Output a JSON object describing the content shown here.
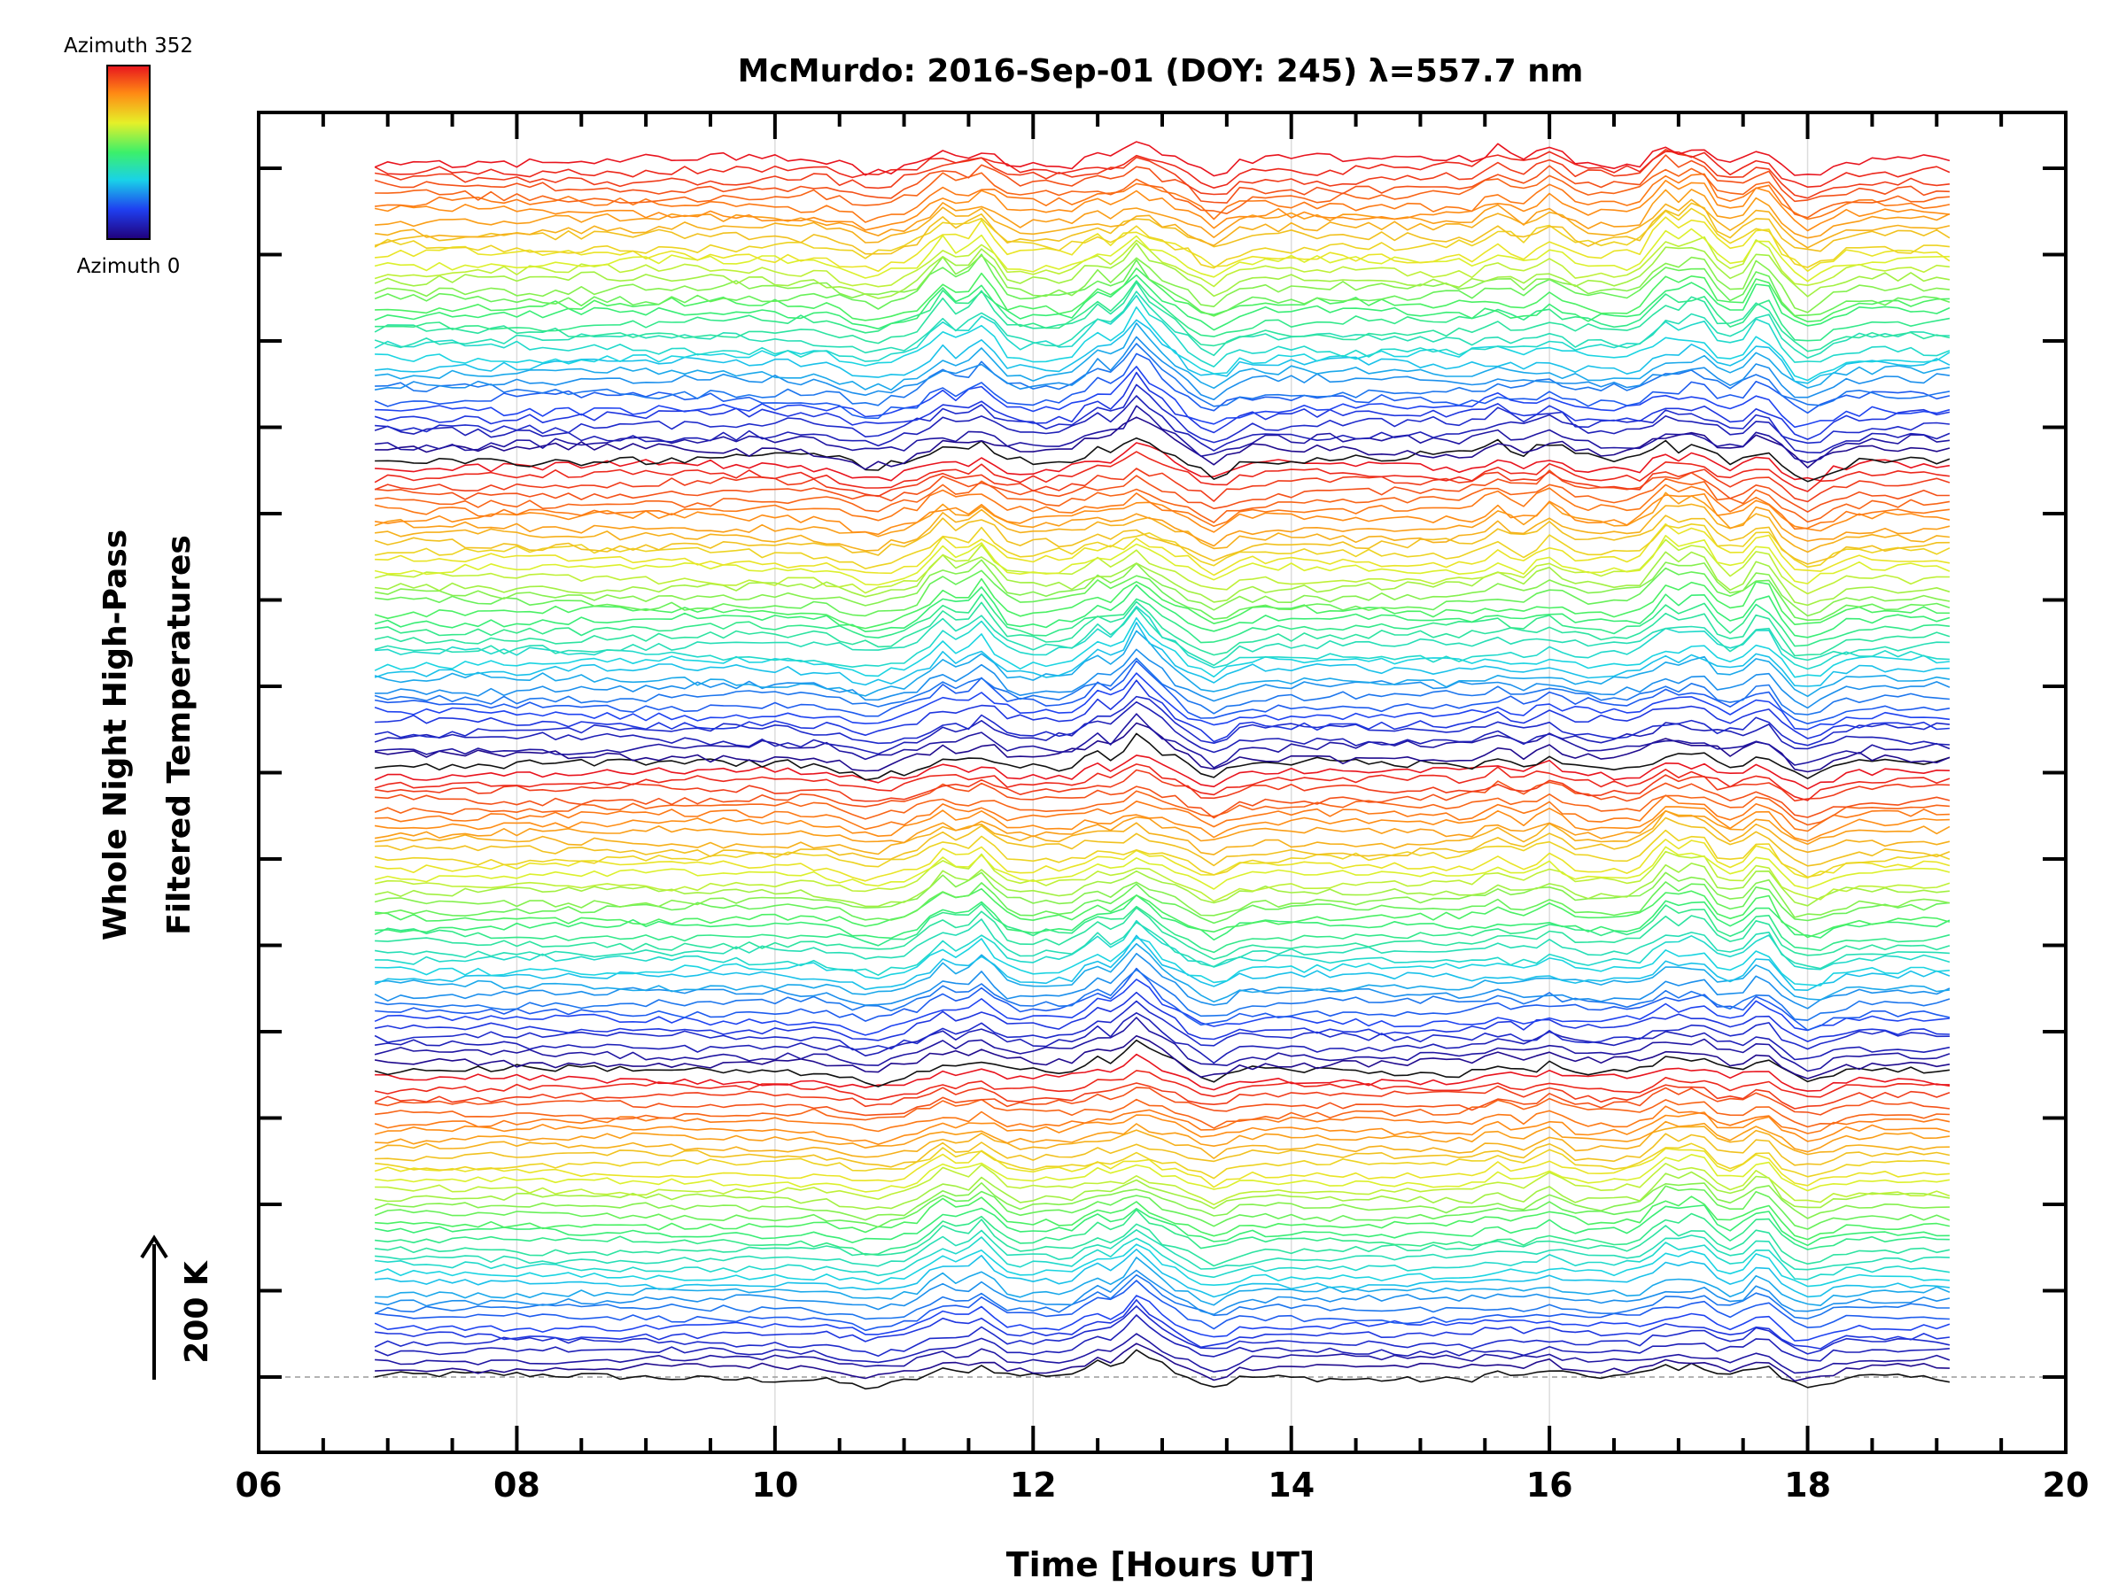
{
  "chart_data": {
    "type": "line",
    "title": "McMurdo: 2016-Sep-01 (DOY: 245) λ=557.7 nm",
    "xlabel": "Time [Hours UT]",
    "ylabel_line1": "Whole Night High-Pass",
    "ylabel_line2": "Filtered Temperatures",
    "scale_label": "200 K",
    "xlim": [
      6,
      20
    ],
    "x_tick_labels": [
      "06",
      "08",
      "10",
      "12",
      "14",
      "16",
      "18",
      "20"
    ],
    "x_ticks": [
      6,
      8,
      10,
      12,
      14,
      16,
      18,
      20
    ],
    "x_minor_step": 0.5,
    "grid": true,
    "legend": {
      "type": "colorbar",
      "placement": "top-left",
      "top_label": "Azimuth 352",
      "bottom_label": "Azimuth 0",
      "colormap": [
        "#20007a",
        "#1f3ff0",
        "#19d2e8",
        "#3cf06a",
        "#e6f028",
        "#ff8a14",
        "#e8141e"
      ]
    },
    "series_count": 144,
    "time_range": [
      6.9,
      19.15
    ],
    "sample_step_hours": 0.1,
    "perturbation_events": [
      {
        "hour": 11.3,
        "amplitude": 0.7
      },
      {
        "hour": 11.6,
        "amplitude": 0.9
      },
      {
        "hour": 12.5,
        "amplitude": 0.6
      },
      {
        "hour": 12.8,
        "amplitude": 1.2
      },
      {
        "hour": 13.0,
        "amplitude": 0.4
      },
      {
        "hour": 15.6,
        "amplitude": 0.35
      },
      {
        "hour": 16.0,
        "amplitude": 0.5
      },
      {
        "hour": 16.9,
        "amplitude": 0.85
      },
      {
        "hour": 17.15,
        "amplitude": 0.9
      },
      {
        "hour": 17.65,
        "amplitude": 0.8
      }
    ]
  }
}
